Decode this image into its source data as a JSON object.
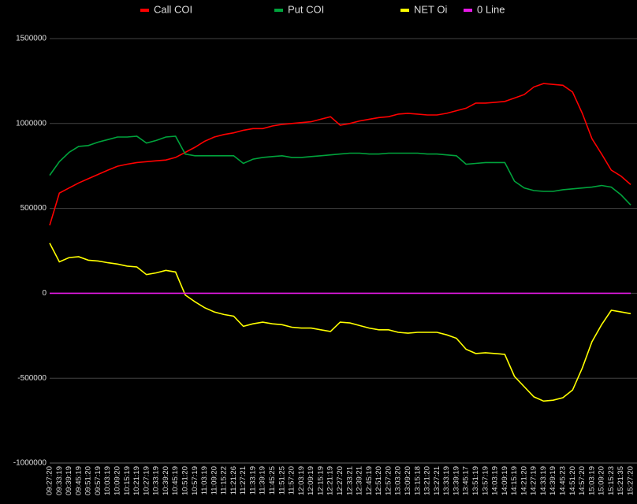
{
  "chart_data": {
    "type": "line",
    "categories": [
      "09:27:20",
      "09:33:19",
      "09:39:19",
      "09:45:19",
      "09:51:20",
      "09:57:19",
      "10:03:19",
      "10:09:20",
      "10:15:19",
      "10:21:19",
      "10:27:19",
      "10:33:19",
      "10:39:20",
      "10:45:19",
      "10:51:20",
      "10:57:19",
      "11:03:19",
      "11:09:20",
      "11:15:22",
      "11:21:26",
      "11:27:21",
      "11:33:19",
      "11:39:19",
      "11:45:25",
      "11:51:25",
      "11:57:20",
      "12:03:19",
      "12:09:19",
      "12:15:19",
      "12:21:19",
      "12:27:20",
      "12:33:21",
      "12:39:21",
      "12:45:19",
      "12:51:20",
      "12:57:20",
      "13:03:20",
      "13:09:20",
      "13:15:18",
      "13:21:20",
      "13:27:21",
      "13:33:19",
      "13:39:19",
      "13:45:17",
      "13:51:19",
      "13:57:19",
      "14:03:19",
      "14:09:19",
      "14:15:19",
      "14:21:20",
      "14:27:19",
      "14:33:19",
      "14:39:19",
      "14:45:23",
      "14:51:20",
      "14:57:20",
      "15:03:19",
      "15:09:20",
      "15:15:23",
      "15:21:35",
      "15:27:20"
    ],
    "series": [
      {
        "name": "Call COI",
        "color": "#ff0000",
        "values": [
          400000,
          590000,
          620000,
          650000,
          675000,
          700000,
          725000,
          748000,
          760000,
          770000,
          775000,
          780000,
          785000,
          800000,
          830000,
          860000,
          895000,
          920000,
          935000,
          945000,
          960000,
          970000,
          970000,
          985000,
          995000,
          1000000,
          1005000,
          1010000,
          1025000,
          1040000,
          990000,
          1000000,
          1015000,
          1025000,
          1035000,
          1040000,
          1055000,
          1060000,
          1055000,
          1050000,
          1050000,
          1060000,
          1075000,
          1090000,
          1120000,
          1120000,
          1125000,
          1130000,
          1150000,
          1170000,
          1215000,
          1235000,
          1230000,
          1225000,
          1185000,
          1060000,
          910000,
          820000,
          725000,
          690000,
          640000
        ]
      },
      {
        "name": "Put COI",
        "color": "#00a33c",
        "values": [
          695000,
          775000,
          830000,
          865000,
          870000,
          890000,
          905000,
          920000,
          920000,
          925000,
          885000,
          900000,
          920000,
          925000,
          820000,
          810000,
          810000,
          810000,
          810000,
          810000,
          765000,
          790000,
          800000,
          805000,
          810000,
          800000,
          800000,
          805000,
          810000,
          815000,
          820000,
          825000,
          825000,
          820000,
          820000,
          825000,
          825000,
          825000,
          825000,
          820000,
          820000,
          815000,
          810000,
          760000,
          765000,
          770000,
          770000,
          770000,
          660000,
          620000,
          605000,
          600000,
          600000,
          610000,
          615000,
          620000,
          625000,
          635000,
          625000,
          580000,
          520000
        ]
      },
      {
        "name": "NET Oi",
        "color": "#ffff00",
        "values": [
          295000,
          185000,
          210000,
          215000,
          195000,
          190000,
          180000,
          172000,
          160000,
          155000,
          110000,
          120000,
          135000,
          125000,
          -10000,
          -50000,
          -85000,
          -110000,
          -125000,
          -135000,
          -195000,
          -180000,
          -170000,
          -180000,
          -185000,
          -200000,
          -205000,
          -205000,
          -215000,
          -225000,
          -170000,
          -175000,
          -190000,
          -205000,
          -215000,
          -215000,
          -230000,
          -235000,
          -230000,
          -230000,
          -230000,
          -245000,
          -265000,
          -330000,
          -355000,
          -350000,
          -355000,
          -360000,
          -490000,
          -550000,
          -610000,
          -635000,
          -630000,
          -615000,
          -570000,
          -440000,
          -285000,
          -185000,
          -100000,
          -110000,
          -120000
        ]
      },
      {
        "name": "0 Line",
        "color": "#e619e6",
        "values": [
          0,
          0,
          0,
          0,
          0,
          0,
          0,
          0,
          0,
          0,
          0,
          0,
          0,
          0,
          0,
          0,
          0,
          0,
          0,
          0,
          0,
          0,
          0,
          0,
          0,
          0,
          0,
          0,
          0,
          0,
          0,
          0,
          0,
          0,
          0,
          0,
          0,
          0,
          0,
          0,
          0,
          0,
          0,
          0,
          0,
          0,
          0,
          0,
          0,
          0,
          0,
          0,
          0,
          0,
          0,
          0,
          0,
          0,
          0,
          0,
          0
        ]
      }
    ],
    "ylim": [
      -1000000,
      1500000
    ],
    "yticks": [
      -1000000,
      -500000,
      0,
      500000,
      1000000,
      1500000
    ],
    "grid": true,
    "legend": "top"
  }
}
